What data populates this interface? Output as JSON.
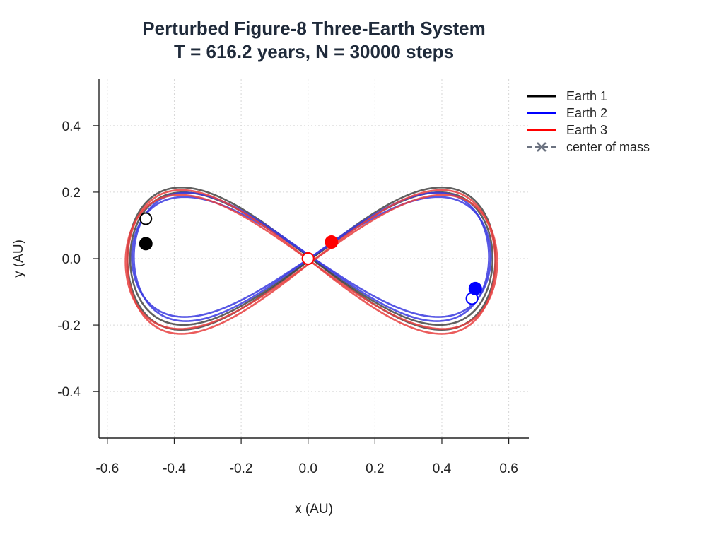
{
  "chart_data": {
    "type": "line",
    "title_line1": "Perturbed Figure-8 Three-Earth System",
    "title_line2": "T = 616.2 years, N = 30000 steps",
    "xlabel": "x (AU)",
    "ylabel": "y (AU)",
    "xlim": [
      -0.625,
      0.66
    ],
    "ylim": [
      -0.54,
      0.54
    ],
    "xticks": [
      -0.6,
      -0.4,
      -0.2,
      0.0,
      0.2,
      0.4,
      0.6
    ],
    "xtick_labels": [
      "-0.6",
      "-0.4",
      "-0.2",
      "0.0",
      "0.2",
      "0.4",
      "0.6"
    ],
    "yticks": [
      -0.4,
      -0.2,
      0.0,
      0.2,
      0.4
    ],
    "ytick_labels": [
      "-0.4",
      "-0.2",
      "0.0",
      "0.2",
      "0.4"
    ],
    "grid": true,
    "legend_position": "top-right",
    "legend": [
      {
        "label": "Earth 1"
      },
      {
        "label": "Earth 2"
      },
      {
        "label": "Earth 3"
      },
      {
        "label": "center of mass"
      }
    ],
    "orbit": {
      "shape": "figure-eight (lemniscate)",
      "x_extent": [
        -0.54,
        0.56
      ],
      "y_extent": [
        -0.21,
        0.21
      ]
    },
    "series": [
      {
        "name": "Earth 1",
        "color": "#000000",
        "trail_color": "#444444",
        "start": {
          "x": -0.485,
          "y": 0.12
        },
        "end": {
          "x": -0.485,
          "y": 0.045
        },
        "orbit_scale_x": [
          1.0,
          0.985
        ],
        "orbit_scale_y": [
          1.02,
          0.95
        ],
        "orbit_offset_y": 0.0
      },
      {
        "name": "Earth 2",
        "color": "#0000ff",
        "trail_color": "#3a3ae0",
        "start": {
          "x": 0.49,
          "y": -0.12
        },
        "end": {
          "x": 0.5,
          "y": -0.09
        },
        "orbit_scale_x": [
          0.965,
          0.975
        ],
        "orbit_scale_y": [
          0.92,
          0.86
        ],
        "orbit_offset_y": -0.005
      },
      {
        "name": "Earth 3",
        "color": "#ff0000",
        "trail_color": "#e84040",
        "start": {
          "x": 0.0,
          "y": 0.0
        },
        "end": {
          "x": 0.07,
          "y": 0.05
        },
        "orbit_scale_x": [
          1.01,
          1.0
        ],
        "orbit_scale_y": [
          0.96,
          1.03
        ],
        "orbit_offset_y": 0.01
      }
    ],
    "center_of_mass": {
      "name": "center of mass",
      "color": "#6b7280",
      "x": 0.0,
      "y": 0.0
    }
  }
}
